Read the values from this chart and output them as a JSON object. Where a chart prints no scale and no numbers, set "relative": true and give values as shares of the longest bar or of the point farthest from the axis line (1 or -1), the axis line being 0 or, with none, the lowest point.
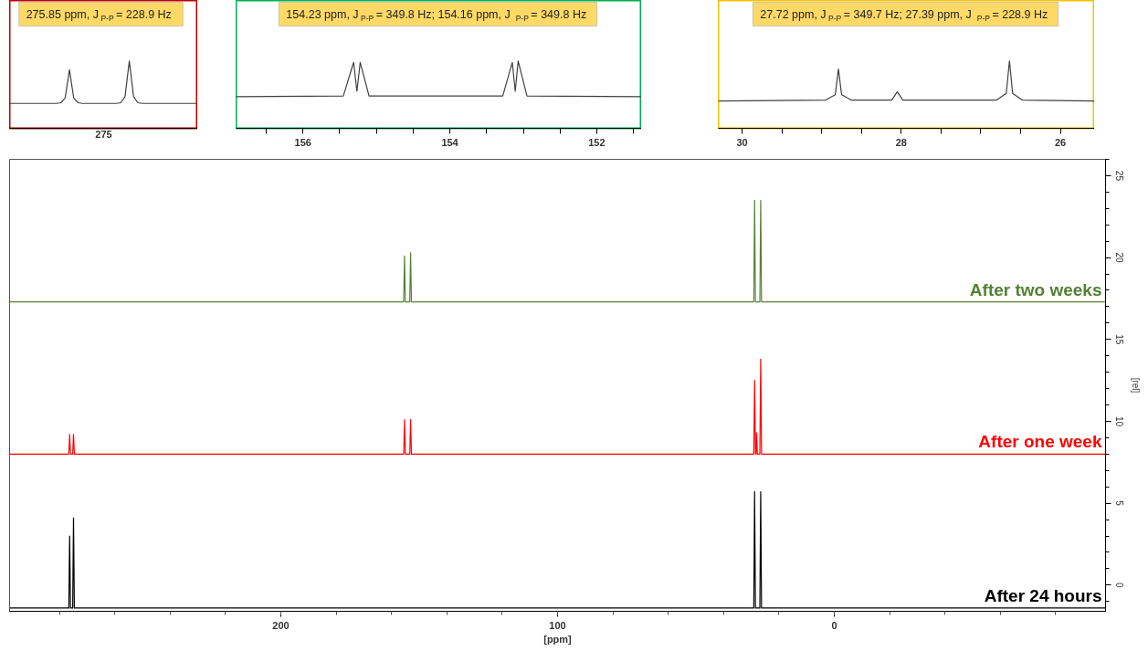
{
  "chart_data": [
    {
      "type": "line",
      "relative": true,
      "grid": false,
      "xlabel": "275",
      "annotations": [
        "275.85 ppm, J$_{P-P}$ = 228.9 Hz"
      ],
      "categories": [
        null,
        null,
        null,
        null,
        null,
        null,
        null,
        null,
        null,
        null,
        null,
        null,
        null,
        null,
        null,
        null,
        null,
        null,
        null,
        null,
        null,
        null,
        null,
        null,
        null,
        null,
        null,
        null,
        null,
        null,
        null,
        null,
        null,
        null,
        null,
        null,
        null,
        null,
        null,
        null,
        null,
        null,
        null,
        null,
        null
      ],
      "series": [
        {
          "color": "#404040",
          "values": [
            0.37,
            0.37,
            0.37,
            0.37,
            0.37,
            0.37,
            0.37,
            0.37,
            0.37,
            0.37,
            0.37,
            0.37,
            0.38,
            0.45,
            0.87,
            0.45,
            0.38,
            0.37,
            0.37,
            0.37,
            0.37,
            0.37,
            0.37,
            0.37,
            0.37,
            0.37,
            0.38,
            0.47,
            1.0,
            0.47,
            0.38,
            0.37,
            0.37,
            0.37,
            0.37,
            0.37,
            0.37,
            0.37,
            0.37,
            0.37,
            0.37,
            0.37,
            0.37,
            0.37,
            0.37
          ]
        }
      ]
    },
    {
      "type": "line",
      "relative": true,
      "tick_labels": "x",
      "grid": false,
      "annotations": [
        "154.23 ppm, J$_{P-P}$ = 349.8 Hz; 154.16 ppm, J$_{P-P}$ = 349.8 Hz"
      ],
      "xlim": [
        156.91,
        151.39
      ],
      "xticks": [
        {
          "value": 156.5,
          "label": null
        },
        156,
        {
          "value": 155.5,
          "label": null
        },
        {
          "value": 155,
          "label": null
        },
        {
          "value": 154.5,
          "label": null
        },
        154,
        {
          "value": 153.5,
          "label": null
        },
        {
          "value": 153,
          "label": null
        },
        {
          "value": 152.5,
          "label": null
        },
        152,
        {
          "value": 151.5,
          "label": null
        }
      ],
      "series": [
        {
          "color": "#404040",
          "x": [
            156.91,
            155.45,
            155.31,
            155.265,
            155.22,
            155.1,
            153.28,
            153.15,
            153.11,
            153.07,
            152.95,
            151.39
          ],
          "values": [
            0.47,
            0.48,
            0.98,
            0.55,
            0.98,
            0.48,
            0.48,
            0.98,
            0.55,
            1.0,
            0.48,
            0.47
          ]
        }
      ]
    },
    {
      "type": "line",
      "relative": true,
      "tick_labels": "x",
      "grid": false,
      "annotations": [
        "27.72 ppm, J$_{P-P}$ = 349.7 Hz; 27.39 ppm, J$_{P-P}$ = 228.9 Hz"
      ],
      "xlim": [
        30.3,
        25.57
      ],
      "xticks": [
        30,
        {
          "value": 29.5,
          "label": null
        },
        {
          "value": 29,
          "label": null
        },
        {
          "value": 28.5,
          "label": null
        },
        28,
        {
          "value": 27.5,
          "label": null
        },
        {
          "value": 27,
          "label": null
        },
        {
          "value": 26.5,
          "label": null
        },
        26
      ],
      "series": [
        {
          "color": "#404040",
          "x": [
            30.3,
            28.95,
            28.83,
            28.79,
            28.75,
            28.63,
            28.12,
            28.05,
            27.98,
            26.8,
            26.68,
            26.64,
            26.6,
            26.48,
            25.57
          ],
          "values": [
            0.405,
            0.42,
            0.5,
            0.88,
            0.5,
            0.42,
            0.42,
            0.54,
            0.42,
            0.42,
            0.52,
            1.0,
            0.52,
            0.42,
            0.405
          ]
        }
      ]
    },
    {
      "type": "line",
      "xlabel": "[ppm]",
      "ylabel": "[rel]",
      "grid": false,
      "xlim": [
        298,
        -98
      ],
      "ylim": [
        -1.6,
        26
      ],
      "xticks": [
        200,
        100,
        0
      ],
      "yticks": [
        0,
        5,
        10,
        15,
        20,
        25
      ],
      "series": [
        {
          "name": "After two weeks",
          "color": "#548235",
          "x": [
            298,
            155.6,
            155.3,
            155.0,
            153.4,
            153.1,
            152.8,
            29.1,
            28.8,
            28.5,
            26.9,
            26.6,
            26.3,
            -98
          ],
          "values": [
            17.3,
            17.3,
            20.1,
            17.3,
            17.3,
            20.3,
            17.3,
            17.3,
            23.5,
            17.3,
            17.3,
            23.5,
            17.3,
            17.3
          ]
        },
        {
          "name": "After one week",
          "color": "#ff0000",
          "x": [
            298,
            276.6,
            276.3,
            276.0,
            275.2,
            274.9,
            274.6,
            155.6,
            155.3,
            155.0,
            153.4,
            153.1,
            152.8,
            29.1,
            28.8,
            28.5,
            28.3,
            28.05,
            27.8,
            26.9,
            26.6,
            26.3,
            -98
          ],
          "values": [
            8.0,
            8.0,
            9.2,
            8.0,
            8.0,
            9.2,
            8.0,
            8.0,
            10.1,
            8.0,
            8.0,
            10.1,
            8.0,
            8.0,
            12.5,
            8.0,
            8.0,
            9.3,
            8.0,
            8.0,
            13.8,
            8.0,
            8.0
          ]
        },
        {
          "name": "After 24 hours",
          "color": "#000000",
          "x": [
            298,
            276.6,
            276.3,
            276.0,
            275.2,
            274.9,
            274.6,
            29.1,
            28.8,
            28.5,
            26.9,
            26.6,
            26.3,
            -98
          ],
          "values": [
            -1.4,
            -1.4,
            3.0,
            -1.4,
            -1.4,
            4.1,
            -1.4,
            -1.4,
            5.7,
            -1.4,
            -1.4,
            5.7,
            -1.4,
            -1.4
          ]
        }
      ]
    }
  ]
}
